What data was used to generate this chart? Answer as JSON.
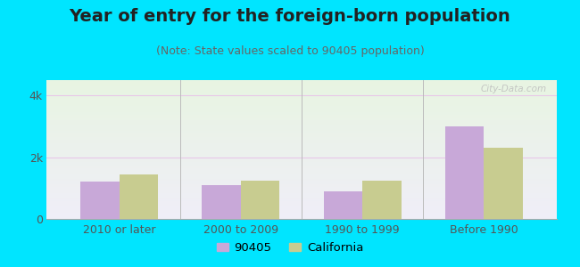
{
  "title": "Year of entry for the foreign-born population",
  "subtitle": "(Note: State values scaled to 90405 population)",
  "categories": [
    "2010 or later",
    "2000 to 2009",
    "1990 to 1999",
    "Before 1990"
  ],
  "values_90405": [
    1200,
    1100,
    900,
    3000
  ],
  "values_california": [
    1450,
    1250,
    1250,
    2300
  ],
  "color_90405": "#c8a8d8",
  "color_california": "#c8cc90",
  "legend_90405": "90405",
  "legend_california": "California",
  "ylim": [
    0,
    4500
  ],
  "ytick_vals": [
    0,
    2000,
    4000
  ],
  "ytick_labels": [
    "0",
    "2k",
    "4k"
  ],
  "background_outer": "#00e5ff",
  "background_plot_top": "#e8f5e2",
  "background_plot_bottom": "#f0eef8",
  "grid_color": "#e8c8e8",
  "title_fontsize": 14,
  "subtitle_fontsize": 9,
  "label_fontsize": 9,
  "bar_width": 0.32,
  "watermark": "City-Data.com"
}
